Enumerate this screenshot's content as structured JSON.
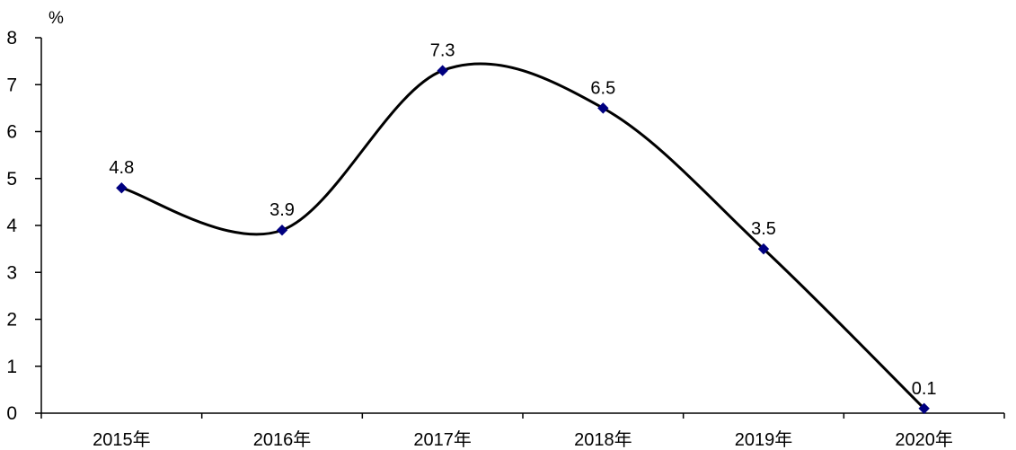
{
  "chart_data": {
    "type": "line",
    "title": "",
    "xlabel": "",
    "ylabel": "",
    "y_unit": "%",
    "categories": [
      "2015年",
      "2016年",
      "2017年",
      "2018年",
      "2019年",
      "2020年"
    ],
    "series": [
      {
        "values": [
          4.8,
          3.9,
          7.3,
          6.5,
          3.5,
          0.1
        ],
        "line_color": "#000000",
        "marker_color": "#000080",
        "marker": "diamond",
        "smooth": true
      }
    ],
    "data_labels": [
      "4.8",
      "3.9",
      "7.3",
      "6.5",
      "3.5",
      "0.1"
    ],
    "ylim": [
      0,
      8
    ],
    "y_ticks": [
      "0",
      "1",
      "2",
      "3",
      "4",
      "5",
      "6",
      "7",
      "8"
    ],
    "grid": false,
    "legend": "none"
  }
}
